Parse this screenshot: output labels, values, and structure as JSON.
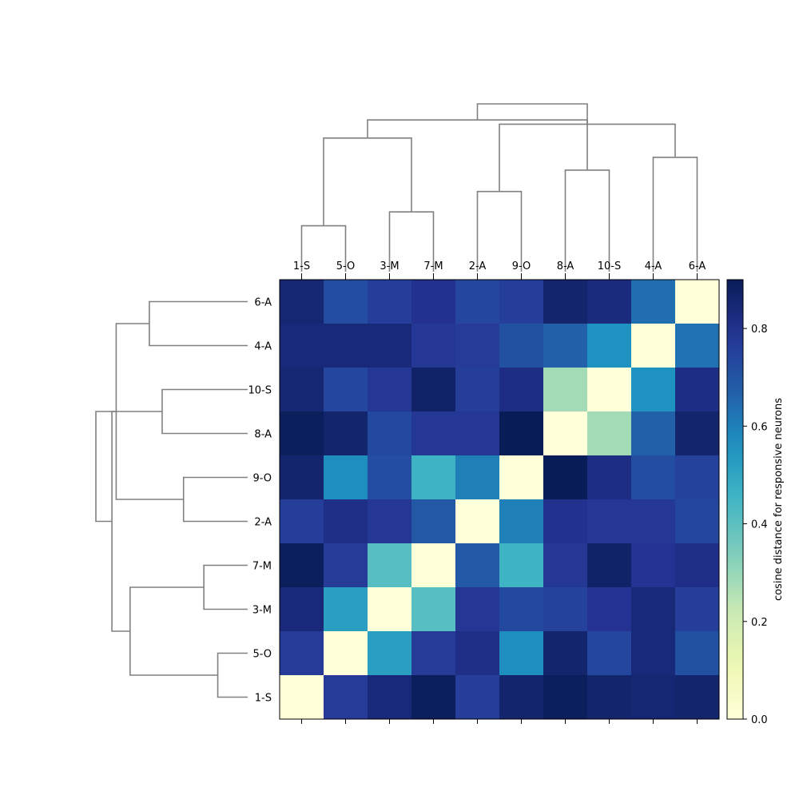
{
  "chart_data": {
    "type": "heatmap",
    "title": "",
    "colorbar_label": "cosine distance for responsive neurons",
    "colorbar_ticks": [
      0.0,
      0.2,
      0.4,
      0.6,
      0.8
    ],
    "colorbar_tick_labels": [
      "0.0",
      "0.2",
      "0.4",
      "0.6",
      "0.8"
    ],
    "vmin": 0.0,
    "vmax": 0.9,
    "colormap": "YlGnBu",
    "dendrogram_color": "#808080",
    "columns": [
      "1-S",
      "5-O",
      "3-M",
      "7-M",
      "2-A",
      "9-O",
      "8-A",
      "10-S",
      "4-A",
      "6-A"
    ],
    "rows": [
      "6-A",
      "4-A",
      "10-S",
      "8-A",
      "9-O",
      "2-A",
      "7-M",
      "3-M",
      "5-O",
      "1-S"
    ],
    "values": [
      [
        0.85,
        0.72,
        0.76,
        0.8,
        0.74,
        0.76,
        0.86,
        0.83,
        0.64,
        0.0
      ],
      [
        0.84,
        0.84,
        0.84,
        0.78,
        0.77,
        0.71,
        0.67,
        0.56,
        0.0,
        0.63
      ],
      [
        0.85,
        0.74,
        0.78,
        0.87,
        0.76,
        0.82,
        0.28,
        0.0,
        0.56,
        0.82
      ],
      [
        0.89,
        0.86,
        0.73,
        0.78,
        0.78,
        0.9,
        0.0,
        0.28,
        0.67,
        0.86
      ],
      [
        0.86,
        0.57,
        0.72,
        0.46,
        0.6,
        0.0,
        0.9,
        0.82,
        0.72,
        0.75
      ],
      [
        0.76,
        0.81,
        0.78,
        0.69,
        0.0,
        0.6,
        0.8,
        0.78,
        0.78,
        0.74
      ],
      [
        0.89,
        0.77,
        0.41,
        0.0,
        0.69,
        0.46,
        0.78,
        0.87,
        0.79,
        0.81
      ],
      [
        0.84,
        0.52,
        0.0,
        0.41,
        0.78,
        0.73,
        0.75,
        0.79,
        0.84,
        0.76
      ],
      [
        0.77,
        0.0,
        0.52,
        0.77,
        0.81,
        0.57,
        0.86,
        0.74,
        0.84,
        0.71
      ],
      [
        0.0,
        0.77,
        0.84,
        0.89,
        0.76,
        0.86,
        0.89,
        0.86,
        0.85,
        0.86
      ]
    ],
    "col_dendrogram": [
      {
        "a": 0,
        "b": 1,
        "height": 0.28
      },
      {
        "a": 2,
        "b": 3,
        "height": 0.41
      },
      {
        "a": 4,
        "b": 5,
        "height": 0.6
      },
      {
        "a": 6,
        "b": 7,
        "height": 0.8
      },
      {
        "a": 8,
        "b": 9,
        "height": 0.92
      },
      {
        "a": 10,
        "b": 11,
        "height": 1.1
      },
      {
        "a": 12,
        "b": 14,
        "height": 1.23
      },
      {
        "a": 13,
        "b": 15,
        "height": 1.27
      },
      {
        "a": 16,
        "b": 17,
        "height": 1.42
      }
    ],
    "row_dendrogram": [
      {
        "a": 0,
        "b": 1,
        "height": 0.28
      },
      {
        "a": 2,
        "b": 3,
        "height": 0.41
      },
      {
        "a": 4,
        "b": 5,
        "height": 0.6
      },
      {
        "a": 6,
        "b": 7,
        "height": 0.8
      },
      {
        "a": 8,
        "b": 9,
        "height": 0.92
      },
      {
        "a": 10,
        "b": 11,
        "height": 1.1
      },
      {
        "a": 12,
        "b": 14,
        "height": 1.23
      },
      {
        "a": 13,
        "b": 15,
        "height": 1.27
      },
      {
        "a": 16,
        "b": 17,
        "height": 1.42
      }
    ]
  }
}
